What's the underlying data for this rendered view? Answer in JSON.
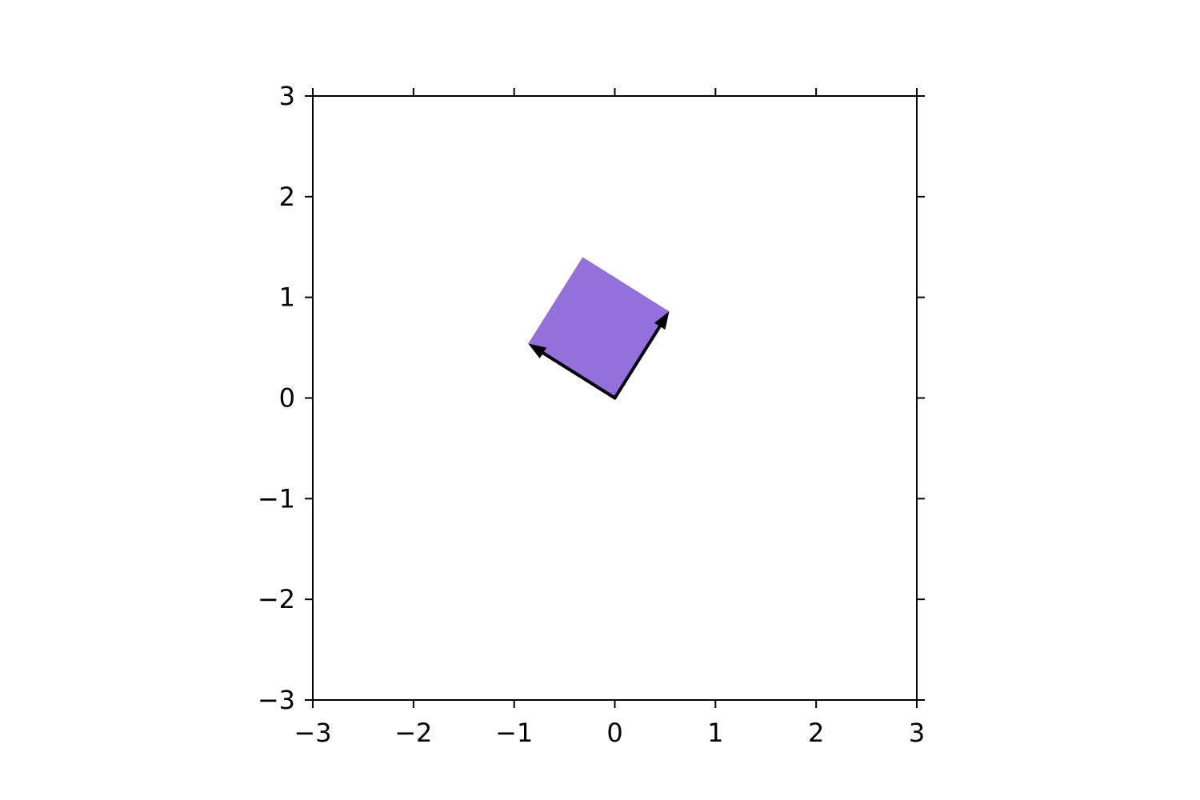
{
  "chart_data": {
    "type": "scatter",
    "title": "",
    "xlabel": "",
    "ylabel": "",
    "xlim": [
      -3,
      3
    ],
    "ylim": [
      -3,
      3
    ],
    "x_ticks": [
      -3,
      -2,
      -1,
      0,
      1,
      2,
      3
    ],
    "y_ticks": [
      -3,
      -2,
      -1,
      0,
      1,
      2,
      3
    ],
    "x_tick_labels": [
      "−3",
      "−2",
      "−1",
      "0",
      "1",
      "2",
      "3"
    ],
    "y_tick_labels": [
      "−3",
      "−2",
      "−1",
      "0",
      "1",
      "2",
      "3"
    ],
    "grid": false,
    "ticks_on_all_sides": true,
    "parallelogram": {
      "vertices": [
        [
          0,
          0
        ],
        [
          0.54,
          0.86
        ],
        [
          -0.32,
          1.4
        ],
        [
          -0.86,
          0.54
        ]
      ],
      "color": "#9370db"
    },
    "vectors": [
      {
        "origin": [
          0,
          0
        ],
        "end": [
          0.54,
          0.86
        ],
        "color": "#000000"
      },
      {
        "origin": [
          0,
          0
        ],
        "end": [
          -0.86,
          0.54
        ],
        "color": "#000000"
      }
    ]
  }
}
